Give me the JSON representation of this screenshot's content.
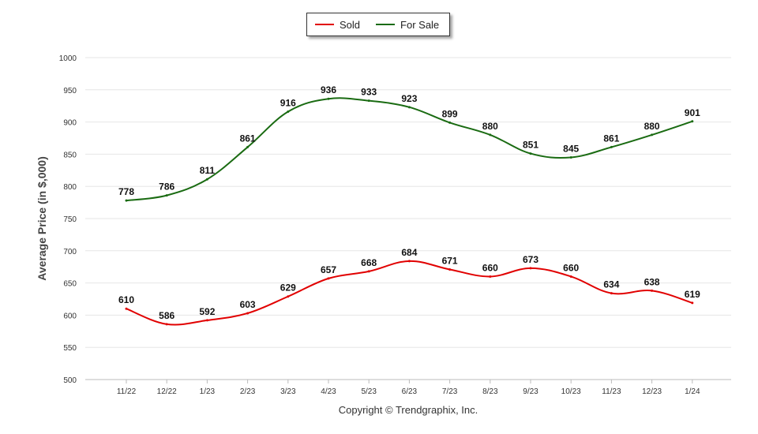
{
  "chart_data": {
    "type": "line",
    "ylabel": "Average Price (in $,000)",
    "ylim": [
      500,
      1000
    ],
    "yticks": [
      500,
      550,
      600,
      650,
      700,
      750,
      800,
      850,
      900,
      950,
      1000
    ],
    "categories": [
      "11/22",
      "12/22",
      "1/23",
      "2/23",
      "3/23",
      "4/23",
      "5/23",
      "6/23",
      "7/23",
      "8/23",
      "9/23",
      "10/23",
      "11/23",
      "12/23",
      "1/24"
    ],
    "series": [
      {
        "name": "Sold",
        "color": "#e10000",
        "values": [
          610,
          586,
          592,
          603,
          629,
          657,
          668,
          684,
          671,
          660,
          673,
          660,
          634,
          638,
          619
        ]
      },
      {
        "name": "For Sale",
        "color": "#1a6b12",
        "values": [
          778,
          786,
          811,
          861,
          916,
          936,
          933,
          923,
          899,
          880,
          851,
          845,
          861,
          880,
          901
        ]
      }
    ],
    "grid": true,
    "legend_position": "top-center"
  },
  "legend": {
    "sold_label": "Sold",
    "for_sale_label": "For Sale"
  },
  "footer": {
    "copyright": "Copyright © Trendgraphix, Inc."
  }
}
